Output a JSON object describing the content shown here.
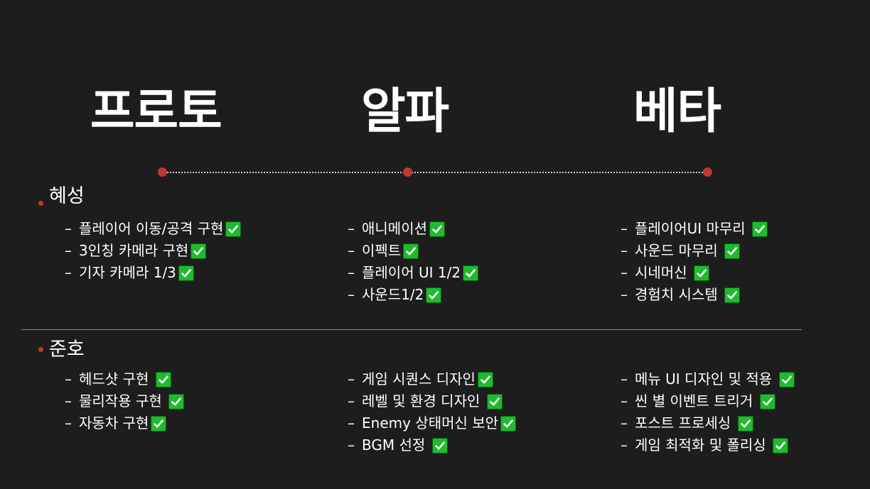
{
  "phases": [
    "프로토",
    "알파",
    "베타"
  ],
  "colors": {
    "background": "#1d1d1d",
    "accent": "#c0392b",
    "check": "#1fba2e"
  },
  "sections": [
    {
      "name": "혜성",
      "columns": [
        [
          "플레이어 이동/공격 구현",
          "3인칭 카메라 구현",
          "기자 카메라 1/3"
        ],
        [
          "애니메이션",
          "이펙트",
          "플레이어 UI 1/2",
          "사운드1/2"
        ],
        [
          "플레이어UI 마무리 ",
          "사운드 마무리 ",
          "시네머신 ",
          "경험치 시스템 "
        ]
      ]
    },
    {
      "name": "준호",
      "columns": [
        [
          "헤드샷 구현 ",
          "물리작용 구현 ",
          "자동차 구현"
        ],
        [
          "게임 시퀀스 디자인",
          "레벨 및 환경 디자인 ",
          "Enemy 상태머신 보안",
          "BGM 선정 "
        ],
        [
          "메뉴 UI 디자인 및 적용 ",
          "씬 별 이벤트 트리거 ",
          "포스트 프로세싱 ",
          "게임 최적화 및 폴리싱 "
        ]
      ]
    }
  ],
  "task_prefix": "–",
  "check_icon": "green-checkmark-icon"
}
